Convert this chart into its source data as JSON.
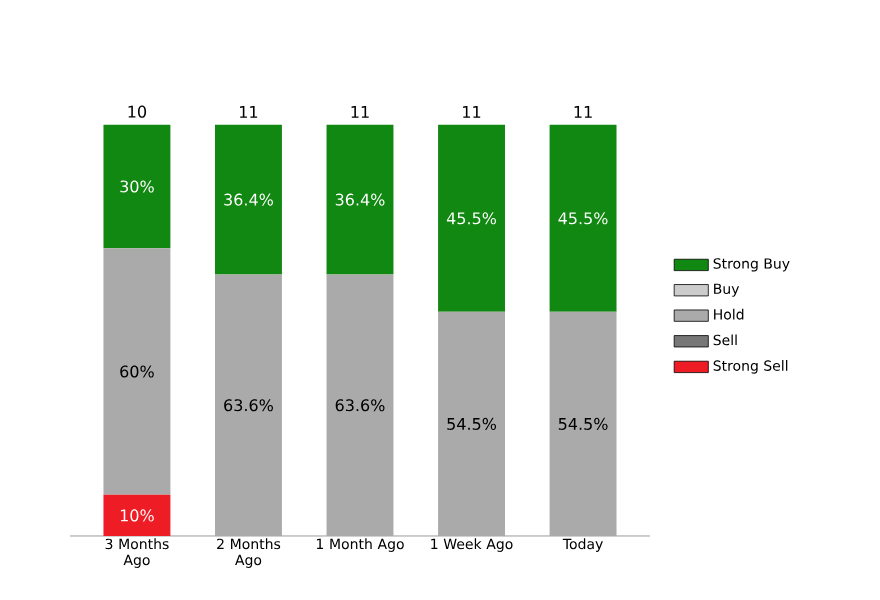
{
  "chart_data": {
    "type": "bar",
    "stacked": true,
    "categories": [
      "3 Months Ago",
      "2 Months Ago",
      "1 Month Ago",
      "1 Week Ago",
      "Today"
    ],
    "series": [
      {
        "name": "Strong Sell",
        "color": "#ee1c25",
        "values": [
          10,
          0,
          0,
          0,
          0
        ],
        "value_labels": [
          "10%",
          null,
          null,
          null,
          null
        ]
      },
      {
        "name": "Sell",
        "color": "#777777",
        "values": [
          0,
          0,
          0,
          0,
          0
        ],
        "value_labels": [
          null,
          null,
          null,
          null,
          null
        ]
      },
      {
        "name": "Hold",
        "color": "#aaaaaa",
        "values": [
          60,
          63.6,
          63.6,
          54.5,
          54.5
        ],
        "value_labels": [
          "60%",
          "63.6%",
          "63.6%",
          "54.5%",
          "54.5%"
        ]
      },
      {
        "name": "Buy",
        "color": "#cccccc",
        "values": [
          0,
          0,
          0,
          0,
          0
        ],
        "value_labels": [
          null,
          null,
          null,
          null,
          null
        ]
      },
      {
        "name": "Strong Buy",
        "color": "#118811",
        "values": [
          30,
          36.4,
          36.4,
          45.5,
          45.5
        ],
        "value_labels": [
          "30%",
          "36.4%",
          "36.4%",
          "45.5%",
          "45.5%"
        ]
      }
    ],
    "annotations": [
      {
        "text": "10",
        "x": "3 Months Ago",
        "y": 100
      },
      {
        "text": "11",
        "x": "2 Months Ago",
        "y": 100
      },
      {
        "text": "11",
        "x": "1 Month Ago",
        "y": 100
      },
      {
        "text": "11",
        "x": "1 Week Ago",
        "y": 100
      },
      {
        "text": "11",
        "x": "Today",
        "y": 100
      }
    ],
    "legend": "right"
  }
}
